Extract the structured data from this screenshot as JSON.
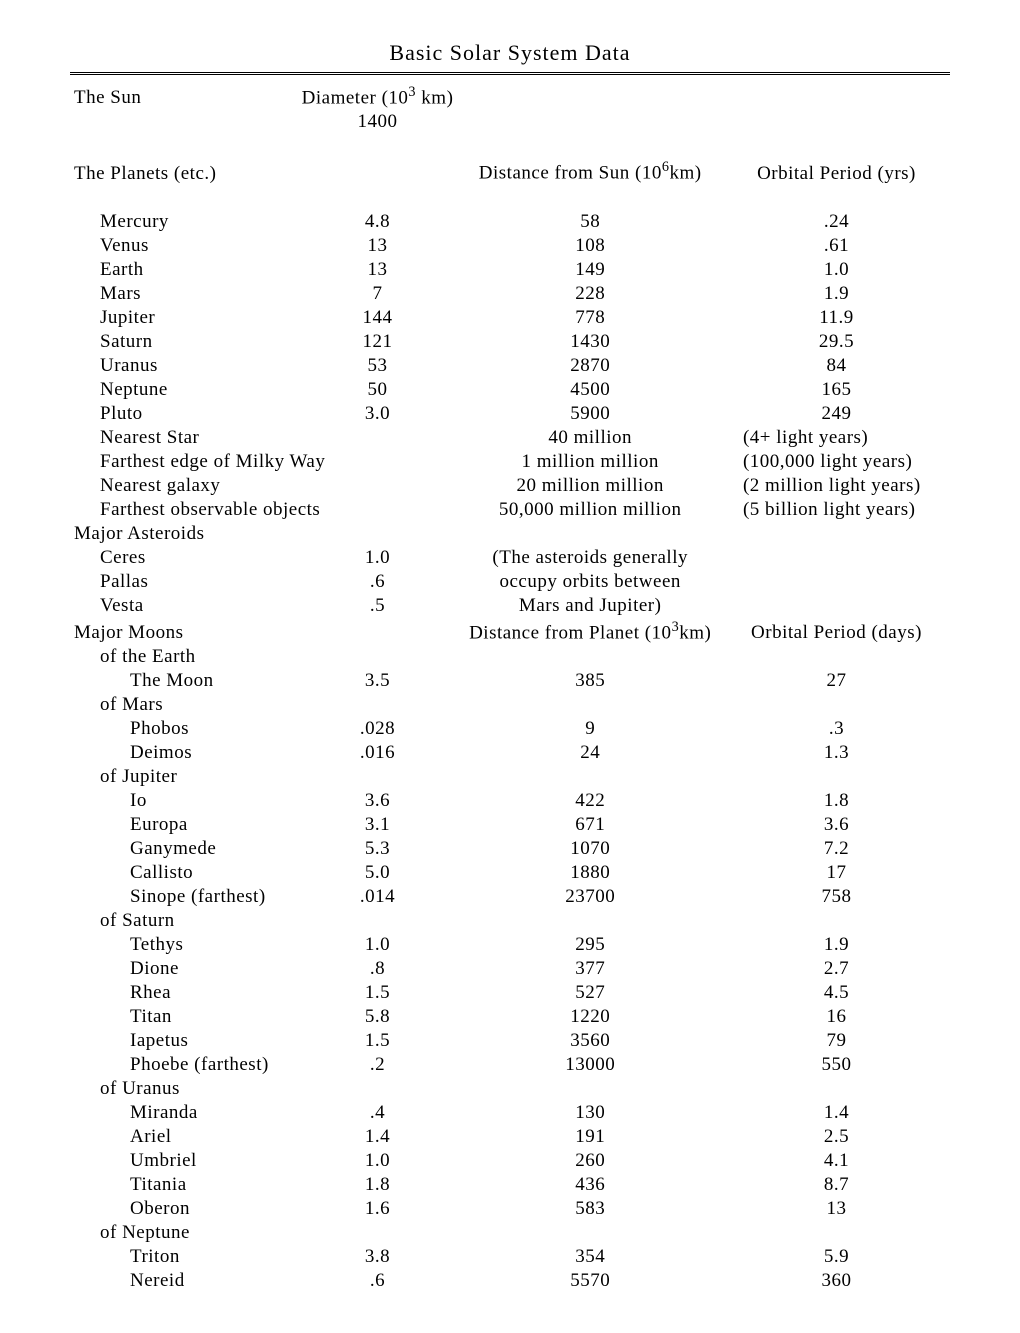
{
  "title": "Basic Solar System Data",
  "sun": {
    "label": "The Sun",
    "diam_header": "Diameter (10³ km)",
    "diameter": "1400"
  },
  "planets_header": {
    "label": "The Planets (etc.)",
    "dist_header": "Distance from Sun (10⁶km)",
    "period_header": "Orbital Period (yrs)"
  },
  "planets": [
    {
      "name": "Mercury",
      "diam": "4.8",
      "dist": "58",
      "period": ".24"
    },
    {
      "name": "Venus",
      "diam": "13",
      "dist": "108",
      "period": ".61"
    },
    {
      "name": "Earth",
      "diam": "13",
      "dist": "149",
      "period": "1.0"
    },
    {
      "name": "Mars",
      "diam": "7",
      "dist": "228",
      "period": "1.9"
    },
    {
      "name": "Jupiter",
      "diam": "144",
      "dist": "778",
      "period": "11.9"
    },
    {
      "name": "Saturn",
      "diam": "121",
      "dist": "1430",
      "period": "29.5"
    },
    {
      "name": "Uranus",
      "diam": "53",
      "dist": "2870",
      "period": "84"
    },
    {
      "name": "Neptune",
      "diam": "50",
      "dist": "4500",
      "period": "165"
    },
    {
      "name": "Pluto",
      "diam": "3.0",
      "dist": "5900",
      "period": "249"
    }
  ],
  "beyond": [
    {
      "name": "Nearest Star",
      "dist": "40 million",
      "note": "(4+ light years)"
    },
    {
      "name": "Farthest edge of Milky Way",
      "dist": "1 million million",
      "note": "(100,000 light years)"
    },
    {
      "name": "Nearest galaxy",
      "dist": "20 million million",
      "note": "(2 million light years)"
    },
    {
      "name": "Farthest observable objects",
      "dist": "50,000 million million",
      "note": "(5 billion light years)"
    }
  ],
  "asteroids_header": "Major Asteroids",
  "asteroids": [
    {
      "name": "Ceres",
      "diam": "1.0",
      "note": "(The asteroids generally"
    },
    {
      "name": "Pallas",
      "diam": ".6",
      "note": "occupy orbits between"
    },
    {
      "name": "Vesta",
      "diam": ".5",
      "note": "Mars and Jupiter)"
    }
  ],
  "moons_header": {
    "label": "Major Moons",
    "dist_header": "Distance from Planet (10³km)",
    "period_header": "Orbital Period (days)"
  },
  "moon_groups": [
    {
      "label": "of the Earth",
      "rows": [
        {
          "name": "The Moon",
          "diam": "3.5",
          "dist": "385",
          "period": "27"
        }
      ]
    },
    {
      "label": "of Mars",
      "rows": [
        {
          "name": "Phobos",
          "diam": ".028",
          "dist": "9",
          "period": ".3"
        },
        {
          "name": "Deimos",
          "diam": ".016",
          "dist": "24",
          "period": "1.3"
        }
      ]
    },
    {
      "label": "of Jupiter",
      "rows": [
        {
          "name": "Io",
          "diam": "3.6",
          "dist": "422",
          "period": "1.8"
        },
        {
          "name": "Europa",
          "diam": "3.1",
          "dist": "671",
          "period": "3.6"
        },
        {
          "name": "Ganymede",
          "diam": "5.3",
          "dist": "1070",
          "period": "7.2"
        },
        {
          "name": "Callisto",
          "diam": "5.0",
          "dist": "1880",
          "period": "17"
        },
        {
          "name": "Sinope (farthest)",
          "diam": ".014",
          "dist": "23700",
          "period": "758"
        }
      ]
    },
    {
      "label": "of Saturn",
      "rows": [
        {
          "name": "Tethys",
          "diam": "1.0",
          "dist": "295",
          "period": "1.9"
        },
        {
          "name": "Dione",
          "diam": ".8",
          "dist": "377",
          "period": "2.7"
        },
        {
          "name": "Rhea",
          "diam": "1.5",
          "dist": "527",
          "period": "4.5"
        },
        {
          "name": "Titan",
          "diam": "5.8",
          "dist": "1220",
          "period": "16"
        },
        {
          "name": "Iapetus",
          "diam": "1.5",
          "dist": "3560",
          "period": "79"
        },
        {
          "name": "Phoebe (farthest)",
          "diam": ".2",
          "dist": "13000",
          "period": "550"
        }
      ]
    },
    {
      "label": "of Uranus",
      "rows": [
        {
          "name": "Miranda",
          "diam": ".4",
          "dist": "130",
          "period": "1.4"
        },
        {
          "name": "Ariel",
          "diam": "1.4",
          "dist": "191",
          "period": "2.5"
        },
        {
          "name": "Umbriel",
          "diam": "1.0",
          "dist": "260",
          "period": "4.1"
        },
        {
          "name": "Titania",
          "diam": "1.8",
          "dist": "436",
          "period": "8.7"
        },
        {
          "name": "Oberon",
          "diam": "1.6",
          "dist": "583",
          "period": "13"
        }
      ]
    },
    {
      "label": "of Neptune",
      "rows": [
        {
          "name": "Triton",
          "diam": "3.8",
          "dist": "354",
          "period": "5.9"
        },
        {
          "name": "Nereid",
          "diam": ".6",
          "dist": "5570",
          "period": "360"
        }
      ]
    }
  ]
}
